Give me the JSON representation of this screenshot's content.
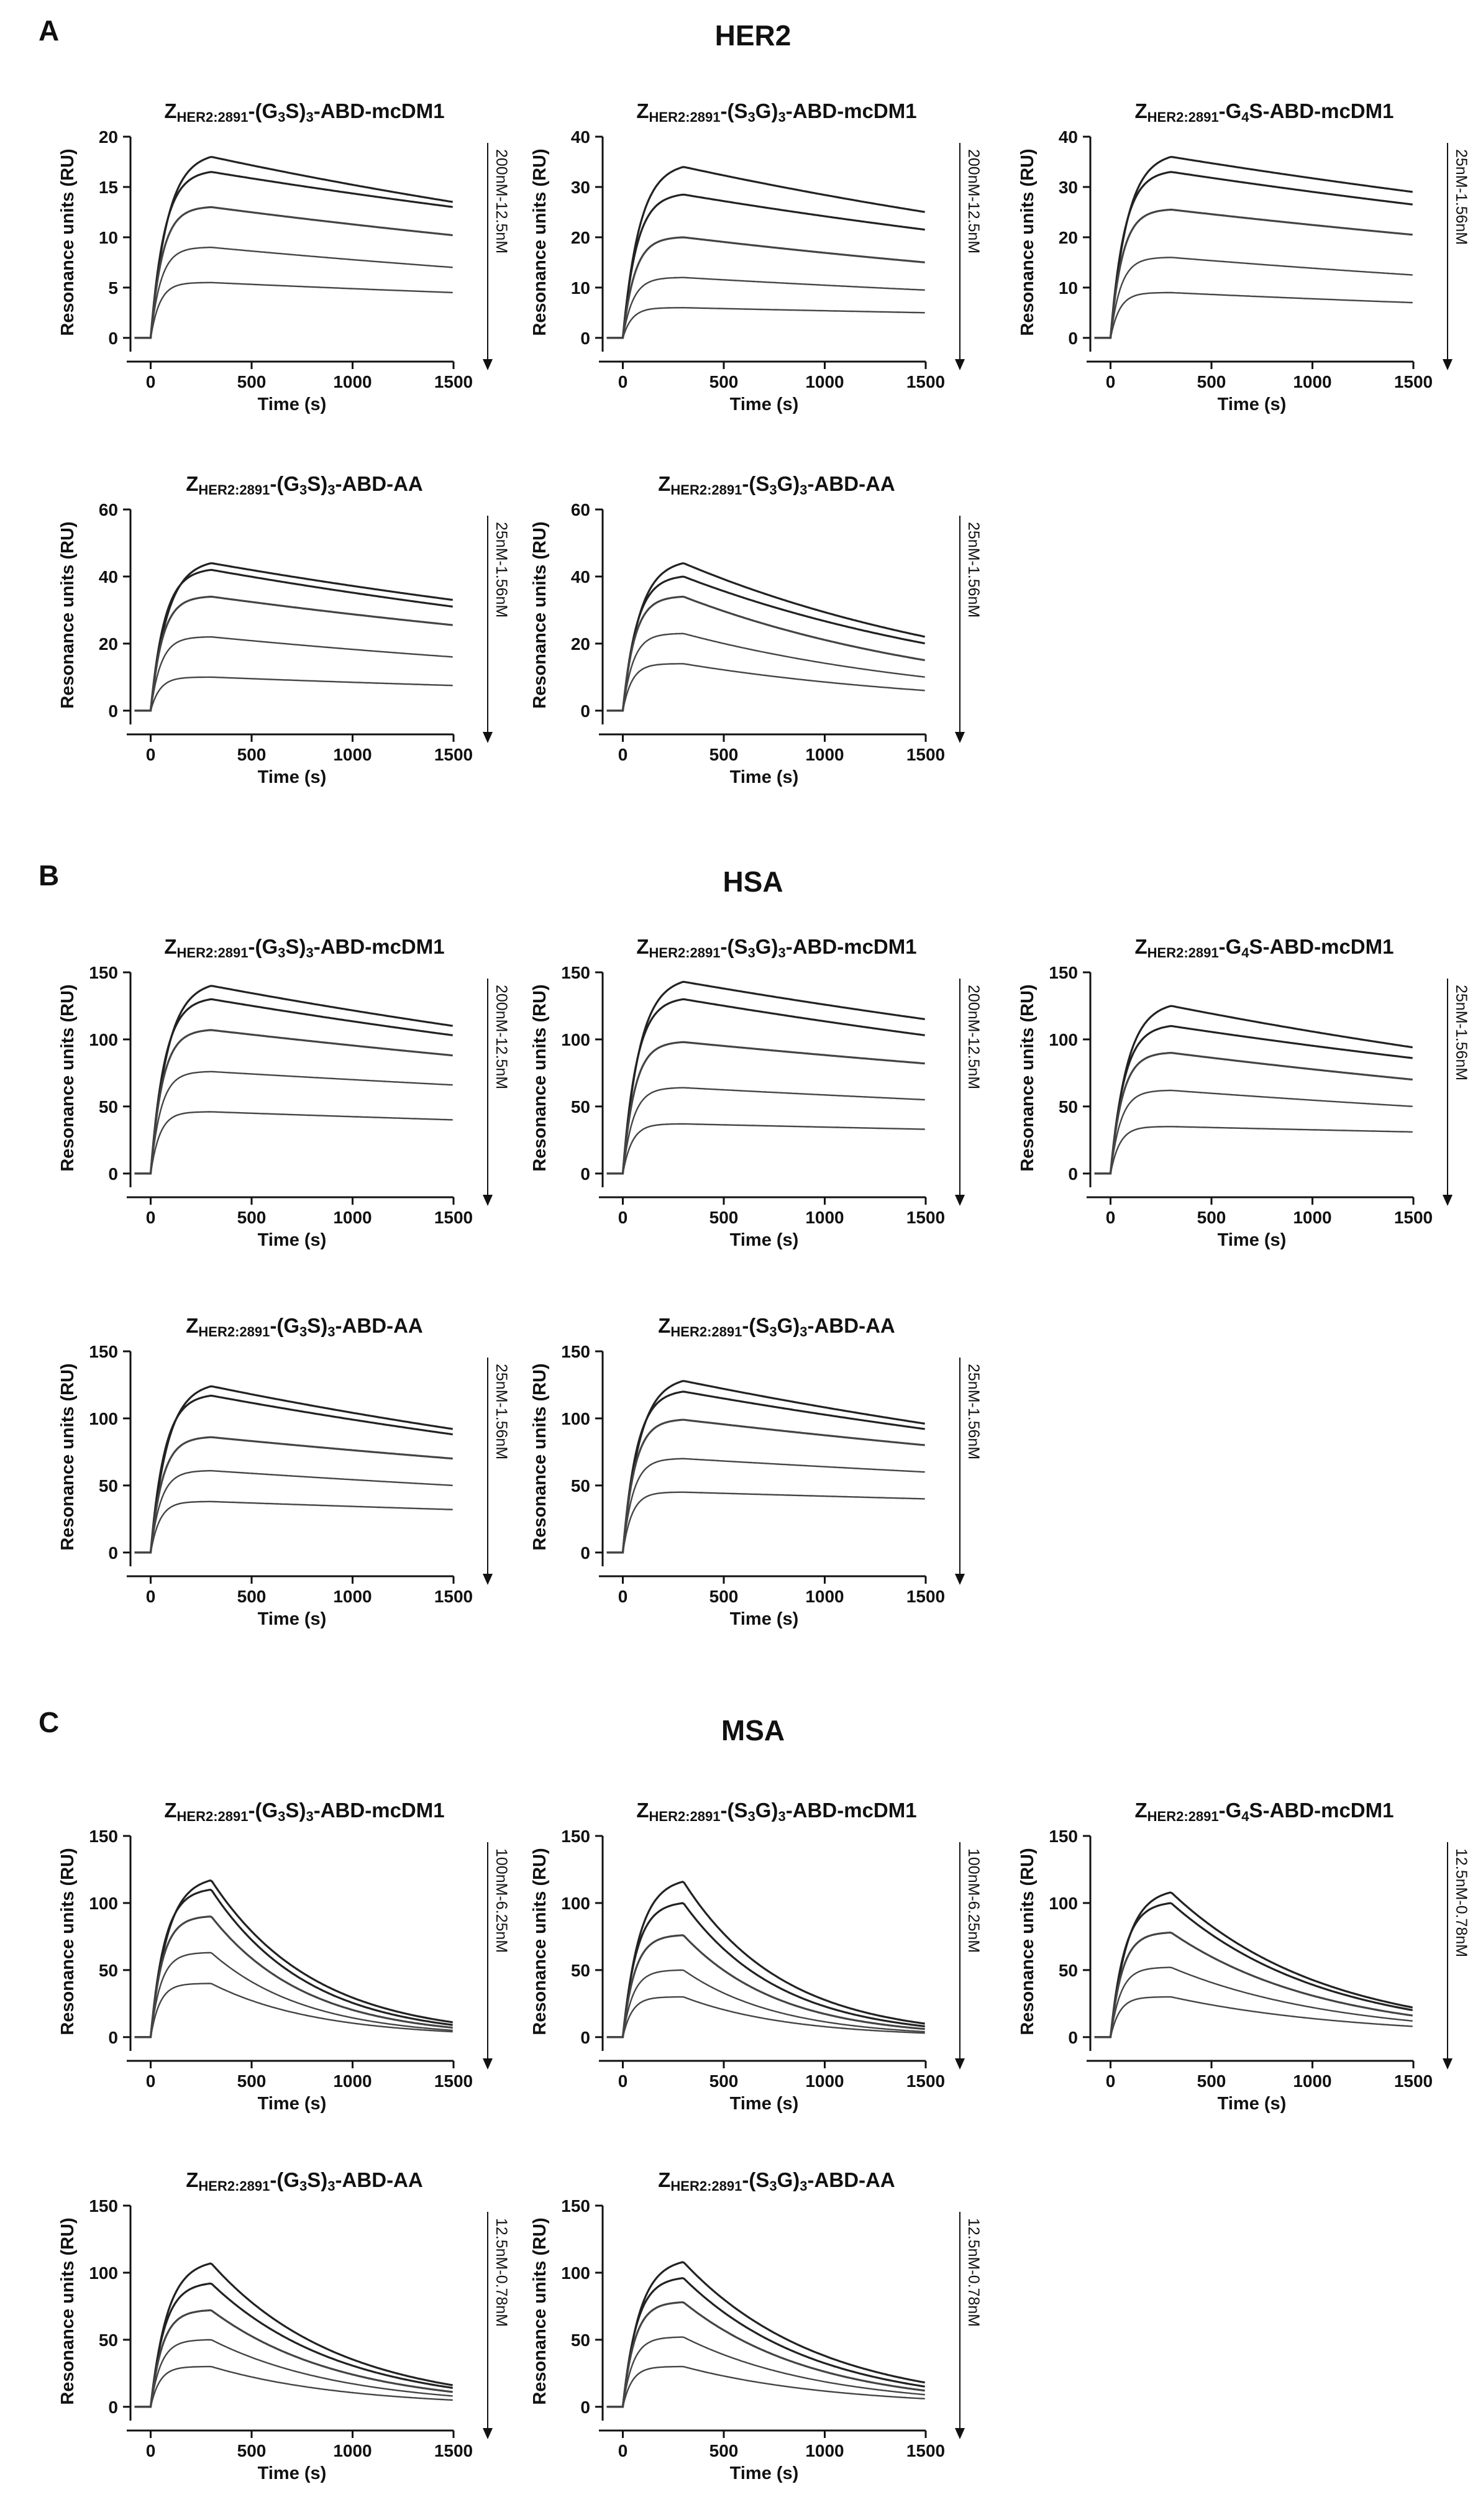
{
  "sections": [
    {
      "letter": "A",
      "title": "HER2"
    },
    {
      "letter": "B",
      "title": "HSA"
    },
    {
      "letter": "C",
      "title": "MSA"
    }
  ],
  "chart_data": [
    {
      "id": "A1",
      "type": "line",
      "analyte": "HER2",
      "title_main": "Z",
      "title_sub": "HER2:2891",
      "title_rest": "-(G3S)3-ABD-mcDM1",
      "ymax": 20,
      "yticks": [
        0,
        5,
        10,
        15,
        20
      ],
      "xticks": [
        0,
        500,
        1000,
        1500
      ],
      "xlabel": "Time (s)",
      "ylabel": "Resonance units (RU)",
      "conc_label": "200nM-12.5nM",
      "peaks": [
        18,
        16.5,
        13,
        9,
        5.5
      ],
      "ends": [
        13.5,
        13,
        10.2,
        7,
        4.5
      ]
    },
    {
      "id": "A2",
      "type": "line",
      "analyte": "HER2",
      "title_main": "Z",
      "title_sub": "HER2:2891",
      "title_rest": "-(S3G)3-ABD-mcDM1",
      "ymax": 40,
      "yticks": [
        0,
        10,
        20,
        30,
        40
      ],
      "xticks": [
        0,
        500,
        1000,
        1500
      ],
      "xlabel": "Time (s)",
      "ylabel": "Resonance units (RU)",
      "conc_label": "200nM-12.5nM",
      "peaks": [
        34,
        28.5,
        20,
        12,
        6
      ],
      "ends": [
        25,
        21.5,
        15,
        9.5,
        5
      ]
    },
    {
      "id": "A3",
      "type": "line",
      "analyte": "HER2",
      "title_main": "Z",
      "title_sub": "HER2:2891",
      "title_rest": "-G4S-ABD-mcDM1",
      "ymax": 40,
      "yticks": [
        0,
        10,
        20,
        30,
        40
      ],
      "xticks": [
        0,
        500,
        1000,
        1500
      ],
      "xlabel": "Time (s)",
      "ylabel": "Resonance units (RU)",
      "conc_label": "25nM-1.56nM",
      "peaks": [
        36,
        33,
        25.5,
        16,
        9
      ],
      "ends": [
        29,
        26.5,
        20.5,
        12.5,
        7
      ]
    },
    {
      "id": "A4",
      "type": "line",
      "analyte": "HER2",
      "title_main": "Z",
      "title_sub": "HER2:2891",
      "title_rest": "-(G3S)3-ABD-AA",
      "ymax": 60,
      "yticks": [
        0,
        20,
        40,
        60
      ],
      "xticks": [
        0,
        500,
        1000,
        1500
      ],
      "xlabel": "Time (s)",
      "ylabel": "Resonance units (RU)",
      "conc_label": "25nM-1.56nM",
      "peaks": [
        44,
        42,
        34,
        22,
        10
      ],
      "ends": [
        33,
        31,
        25.5,
        16,
        7.5
      ]
    },
    {
      "id": "A5",
      "type": "line",
      "analyte": "HER2",
      "title_main": "Z",
      "title_sub": "HER2:2891",
      "title_rest": "-(S3G)3-ABD-AA",
      "ymax": 60,
      "yticks": [
        0,
        20,
        40,
        60
      ],
      "xticks": [
        0,
        500,
        1000,
        1500
      ],
      "xlabel": "Time (s)",
      "ylabel": "Resonance units (RU)",
      "conc_label": "25nM-1.56nM",
      "peaks": [
        44,
        40,
        34,
        23,
        14
      ],
      "ends": [
        22,
        20,
        15,
        10,
        6
      ]
    },
    {
      "id": "B1",
      "type": "line",
      "analyte": "HSA",
      "title_main": "Z",
      "title_sub": "HER2:2891",
      "title_rest": "-(G3S)3-ABD-mcDM1",
      "ymax": 150,
      "yticks": [
        0,
        50,
        100,
        150
      ],
      "xticks": [
        0,
        500,
        1000,
        1500
      ],
      "xlabel": "Time (s)",
      "ylabel": "Resonance units (RU)",
      "conc_label": "200nM-12.5nM",
      "peaks": [
        140,
        130,
        107,
        76,
        46
      ],
      "ends": [
        110,
        103,
        88,
        66,
        40
      ]
    },
    {
      "id": "B2",
      "type": "line",
      "analyte": "HSA",
      "title_main": "Z",
      "title_sub": "HER2:2891",
      "title_rest": "-(S3G)3-ABD-mcDM1",
      "ymax": 150,
      "yticks": [
        0,
        50,
        100,
        150
      ],
      "xticks": [
        0,
        500,
        1000,
        1500
      ],
      "xlabel": "Time (s)",
      "ylabel": "Resonance units (RU)",
      "conc_label": "200nM-12.5nM",
      "peaks": [
        143,
        130,
        98,
        64,
        37
      ],
      "ends": [
        115,
        103,
        82,
        55,
        33
      ]
    },
    {
      "id": "B3",
      "type": "line",
      "analyte": "HSA",
      "title_main": "Z",
      "title_sub": "HER2:2891",
      "title_rest": "-G4S-ABD-mcDM1",
      "ymax": 150,
      "yticks": [
        0,
        50,
        100,
        150
      ],
      "xticks": [
        0,
        500,
        1000,
        1500
      ],
      "xlabel": "Time (s)",
      "ylabel": "Resonance units (RU)",
      "conc_label": "25nM-1.56nM",
      "peaks": [
        125,
        110,
        90,
        62,
        35
      ],
      "ends": [
        94,
        86,
        70,
        50,
        31
      ]
    },
    {
      "id": "B4",
      "type": "line",
      "analyte": "HSA",
      "title_main": "Z",
      "title_sub": "HER2:2891",
      "title_rest": "-(G3S)3-ABD-AA",
      "ymax": 150,
      "yticks": [
        0,
        50,
        100,
        150
      ],
      "xticks": [
        0,
        500,
        1000,
        1500
      ],
      "xlabel": "Time (s)",
      "ylabel": "Resonance units (RU)",
      "conc_label": "25nM-1.56nM",
      "peaks": [
        124,
        117,
        86,
        61,
        38
      ],
      "ends": [
        92,
        88,
        70,
        50,
        32
      ]
    },
    {
      "id": "B5",
      "type": "line",
      "analyte": "HSA",
      "title_main": "Z",
      "title_sub": "HER2:2891",
      "title_rest": "-(S3G)3-ABD-AA",
      "ymax": 150,
      "yticks": [
        0,
        50,
        100,
        150
      ],
      "xticks": [
        0,
        500,
        1000,
        1500
      ],
      "xlabel": "Time (s)",
      "ylabel": "Resonance units (RU)",
      "conc_label": "25nM-1.56nM",
      "peaks": [
        128,
        120,
        99,
        70,
        45
      ],
      "ends": [
        96,
        92,
        80,
        60,
        40
      ]
    },
    {
      "id": "C1",
      "type": "line",
      "analyte": "MSA",
      "title_main": "Z",
      "title_sub": "HER2:2891",
      "title_rest": "-(G3S)3-ABD-mcDM1",
      "ymax": 150,
      "yticks": [
        0,
        50,
        100,
        150
      ],
      "xticks": [
        0,
        500,
        1000,
        1500
      ],
      "xlabel": "Time (s)",
      "ylabel": "Resonance units (RU)",
      "conc_label": "100nM-6.25nM",
      "peaks": [
        117,
        110,
        90,
        63,
        40
      ],
      "ends": [
        11,
        9,
        7,
        5,
        4
      ]
    },
    {
      "id": "C2",
      "type": "line",
      "analyte": "MSA",
      "title_main": "Z",
      "title_sub": "HER2:2891",
      "title_rest": "-(S3G)3-ABD-mcDM1",
      "ymax": 150,
      "yticks": [
        0,
        50,
        100,
        150
      ],
      "xticks": [
        0,
        500,
        1000,
        1500
      ],
      "xlabel": "Time (s)",
      "ylabel": "Resonance units (RU)",
      "conc_label": "100nM-6.25nM",
      "peaks": [
        116,
        100,
        76,
        50,
        30
      ],
      "ends": [
        10,
        8,
        6,
        4,
        3
      ]
    },
    {
      "id": "C3",
      "type": "line",
      "analyte": "MSA",
      "title_main": "Z",
      "title_sub": "HER2:2891",
      "title_rest": "-G4S-ABD-mcDM1",
      "ymax": 150,
      "yticks": [
        0,
        50,
        100,
        150
      ],
      "xticks": [
        0,
        500,
        1000,
        1500
      ],
      "xlabel": "Time (s)",
      "ylabel": "Resonance units (RU)",
      "conc_label": "12.5nM-0.78nM",
      "peaks": [
        108,
        100,
        78,
        52,
        30
      ],
      "ends": [
        22,
        20,
        16,
        12,
        8
      ]
    },
    {
      "id": "C4",
      "type": "line",
      "analyte": "MSA",
      "title_main": "Z",
      "title_sub": "HER2:2891",
      "title_rest": "-(G3S)3-ABD-AA",
      "ymax": 150,
      "yticks": [
        0,
        50,
        100,
        150
      ],
      "xticks": [
        0,
        500,
        1000,
        1500
      ],
      "xlabel": "Time (s)",
      "ylabel": "Resonance units (RU)",
      "conc_label": "12.5nM-0.78nM",
      "peaks": [
        107,
        92,
        72,
        50,
        30
      ],
      "ends": [
        16,
        14,
        11,
        8,
        5
      ]
    },
    {
      "id": "C5",
      "type": "line",
      "analyte": "MSA",
      "title_main": "Z",
      "title_sub": "HER2:2891",
      "title_rest": "-(S3G)3-ABD-AA",
      "ymax": 150,
      "yticks": [
        0,
        50,
        100,
        150
      ],
      "xticks": [
        0,
        500,
        1000,
        1500
      ],
      "xlabel": "Time (s)",
      "ylabel": "Resonance units (RU)",
      "conc_label": "12.5nM-0.78nM",
      "peaks": [
        108,
        96,
        78,
        52,
        30
      ],
      "ends": [
        18,
        15,
        12,
        9,
        6
      ]
    }
  ]
}
